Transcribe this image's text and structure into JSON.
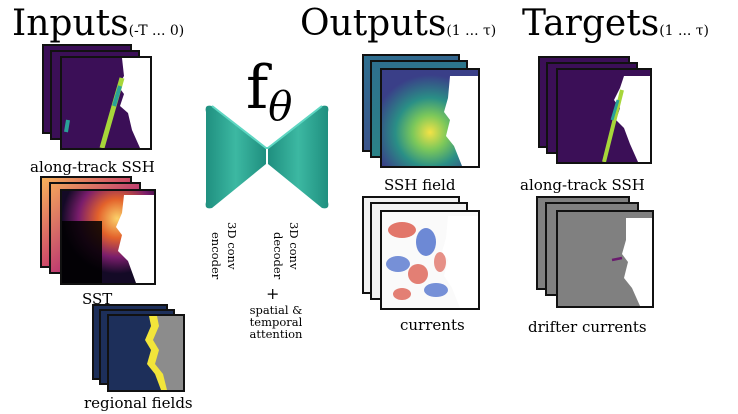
{
  "headings": {
    "inputs": "Inputs",
    "inputs_sub": "(-T ... 0)",
    "outputs": "Outputs",
    "outputs_sub": "(1 ... τ)",
    "targets": "Targets",
    "targets_sub": "(1 ... τ)"
  },
  "model": {
    "symbol": "f",
    "subscript": "θ",
    "encoder_label": "3D conv\nencoder",
    "decoder_label": "3D conv\ndecoder",
    "plus": "+",
    "attention_label": "spatial &\ntemporal\nattention"
  },
  "inputs": {
    "along_track": "along-track SSH",
    "sst": "SST",
    "regional": "regional fields"
  },
  "outputs": {
    "ssh_field": "SSH field",
    "currents": "currents"
  },
  "targets": {
    "along_track": "along-track SSH",
    "drifter": "drifter currents"
  },
  "colors": {
    "purple": "#3b0f57",
    "teal": "#2aa198",
    "navy": "#1d2f5a",
    "gray": "#808080",
    "land": "#ffffff"
  }
}
